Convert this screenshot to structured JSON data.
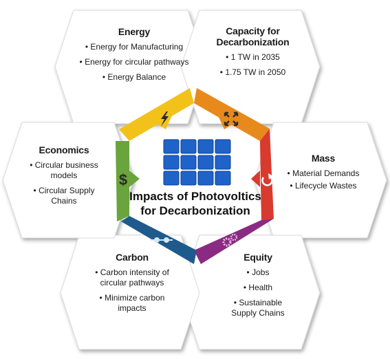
{
  "diagram": {
    "center": {
      "title_line1": "Impacts of Photovoltics",
      "title_line2": "for Decarbonization",
      "icon": "solar-panel-icon"
    },
    "segments": [
      {
        "key": "energy",
        "title": "Energy",
        "items": [
          "Energy for Manufacturing",
          "Energy for circular pathways",
          "Energy Balance"
        ],
        "color": "#f2c21b",
        "icon": "lightning-bolt-icon"
      },
      {
        "key": "capacity",
        "title_line1": "Capacity for",
        "title_line2": "Decarbonization",
        "items": [
          "1 TW in 2035",
          "1.75 TW in 2050"
        ],
        "color": "#e8891c",
        "icon": "expand-arrows-icon"
      },
      {
        "key": "mass",
        "title": "Mass",
        "items": [
          "Material Demands",
          "Lifecycle Wastes"
        ],
        "color": "#d83a2e",
        "icon": "cycle-arrow-icon"
      },
      {
        "key": "equity",
        "title": "Equity",
        "items": [
          "Jobs",
          "Health",
          "Sustainable Supply Chains"
        ],
        "color": "#8b2a82",
        "icon": "gears-icon"
      },
      {
        "key": "carbon",
        "title": "Carbon",
        "items": [
          "Carbon intensity of circular pathways",
          "Minimize carbon impacts"
        ],
        "color": "#1e5b8c",
        "icon": "molecule-chain-icon"
      },
      {
        "key": "economics",
        "title": "Economics",
        "items": [
          "Circular business models",
          "Circular Supply Chains"
        ],
        "color": "#6aa43c",
        "icon": "dollar-icon"
      }
    ]
  }
}
